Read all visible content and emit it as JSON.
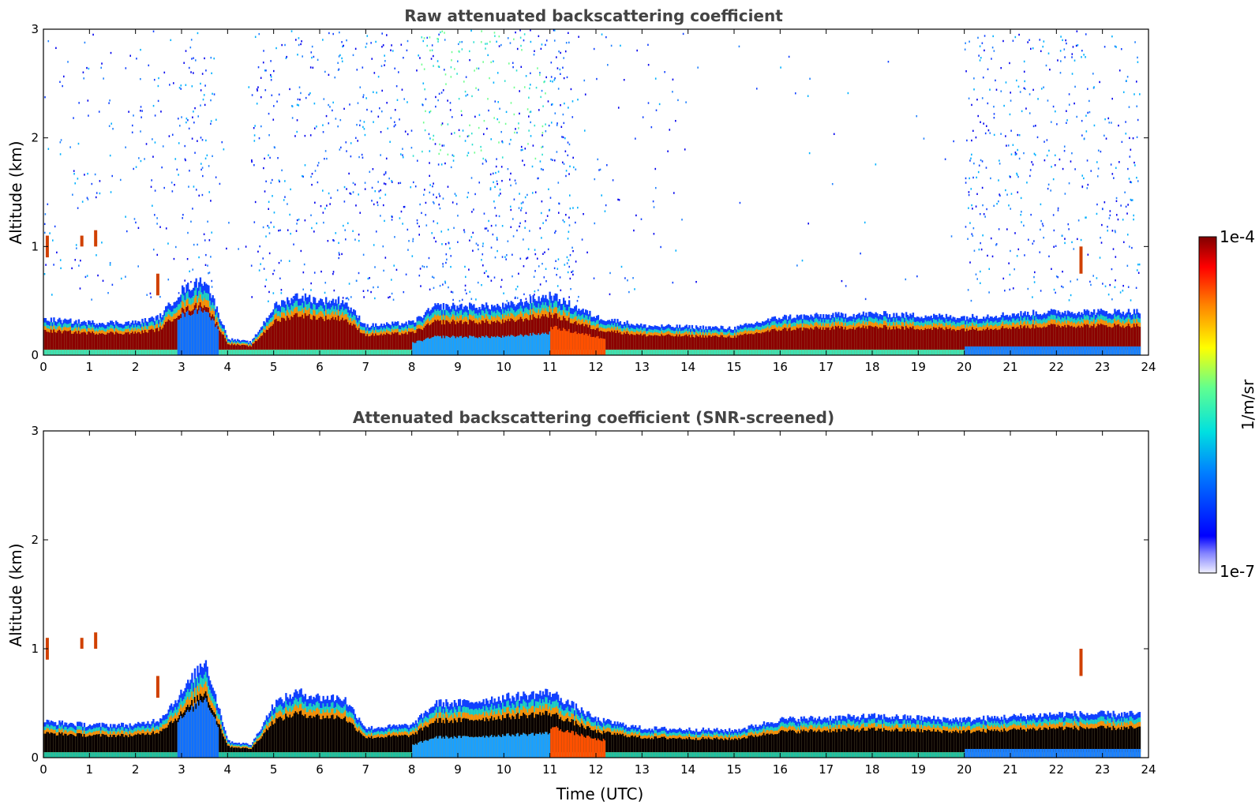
{
  "chart_data": [
    {
      "type": "heatmap",
      "title": "Raw attenuated backscattering coefficient",
      "xlabel": "",
      "ylabel": "Altitude (km)",
      "xlim": [
        0,
        24
      ],
      "ylim": [
        0,
        3
      ],
      "xticks": [
        "0",
        "1",
        "2",
        "3",
        "4",
        "5",
        "6",
        "7",
        "8",
        "9",
        "10",
        "11",
        "12",
        "13",
        "14",
        "15",
        "16",
        "17",
        "18",
        "19",
        "20",
        "21",
        "22",
        "23",
        "24"
      ],
      "yticks": [
        "0",
        "1",
        "2",
        "3"
      ],
      "noise_regions": [
        {
          "x0": 0.0,
          "x1": 3.0,
          "density": 0.22
        },
        {
          "x0": 3.0,
          "x1": 3.7,
          "density": 0.55
        },
        {
          "x0": 3.7,
          "x1": 4.5,
          "density": 0.05
        },
        {
          "x0": 4.5,
          "x1": 8.0,
          "density": 0.45
        },
        {
          "x0": 8.0,
          "x1": 11.5,
          "density": 0.65
        },
        {
          "x0": 11.5,
          "x1": 14.0,
          "density": 0.12
        },
        {
          "x0": 14.0,
          "x1": 20.0,
          "density": 0.02
        },
        {
          "x0": 20.0,
          "x1": 23.8,
          "density": 0.45
        }
      ],
      "layer_top_km": [
        [
          0.0,
          0.33
        ],
        [
          1.0,
          0.3
        ],
        [
          2.0,
          0.3
        ],
        [
          2.5,
          0.35
        ],
        [
          3.0,
          0.6
        ],
        [
          3.5,
          0.7
        ],
        [
          4.0,
          0.15
        ],
        [
          4.5,
          0.12
        ],
        [
          5.0,
          0.45
        ],
        [
          5.5,
          0.55
        ],
        [
          6.0,
          0.5
        ],
        [
          6.5,
          0.5
        ],
        [
          7.0,
          0.27
        ],
        [
          8.0,
          0.3
        ],
        [
          8.5,
          0.45
        ],
        [
          9.0,
          0.45
        ],
        [
          10.0,
          0.45
        ],
        [
          11.0,
          0.55
        ],
        [
          12.0,
          0.35
        ],
        [
          13.0,
          0.27
        ],
        [
          15.0,
          0.25
        ],
        [
          16.0,
          0.35
        ],
        [
          18.0,
          0.38
        ],
        [
          20.0,
          0.35
        ],
        [
          22.0,
          0.4
        ],
        [
          23.8,
          0.4
        ]
      ]
    },
    {
      "type": "heatmap",
      "title": "Attenuated backscattering coefficient (SNR-screened)",
      "xlabel": "Time (UTC)",
      "ylabel": "Altitude (km)",
      "xlim": [
        0,
        24
      ],
      "ylim": [
        0,
        3
      ],
      "xticks": [
        "0",
        "1",
        "2",
        "3",
        "4",
        "5",
        "6",
        "7",
        "8",
        "9",
        "10",
        "11",
        "12",
        "13",
        "14",
        "15",
        "16",
        "17",
        "18",
        "19",
        "20",
        "21",
        "22",
        "23",
        "24"
      ],
      "yticks": [
        "0",
        "1",
        "2",
        "3"
      ],
      "layer_top_km": [
        [
          0.0,
          0.33
        ],
        [
          1.0,
          0.3
        ],
        [
          2.0,
          0.3
        ],
        [
          2.5,
          0.35
        ],
        [
          3.0,
          0.6
        ],
        [
          3.5,
          0.9
        ],
        [
          4.0,
          0.15
        ],
        [
          4.5,
          0.12
        ],
        [
          5.0,
          0.5
        ],
        [
          5.5,
          0.6
        ],
        [
          6.0,
          0.55
        ],
        [
          6.5,
          0.55
        ],
        [
          7.0,
          0.27
        ],
        [
          8.0,
          0.3
        ],
        [
          8.5,
          0.5
        ],
        [
          9.0,
          0.5
        ],
        [
          10.0,
          0.55
        ],
        [
          11.0,
          0.6
        ],
        [
          12.0,
          0.35
        ],
        [
          13.0,
          0.27
        ],
        [
          15.0,
          0.25
        ],
        [
          16.0,
          0.35
        ],
        [
          18.0,
          0.38
        ],
        [
          20.0,
          0.35
        ],
        [
          22.0,
          0.4
        ],
        [
          23.8,
          0.4
        ]
      ]
    }
  ],
  "colorbar": {
    "label": "1/m/sr",
    "max_label": "1e-4",
    "min_label": "1e-7",
    "colormap": "jet"
  }
}
